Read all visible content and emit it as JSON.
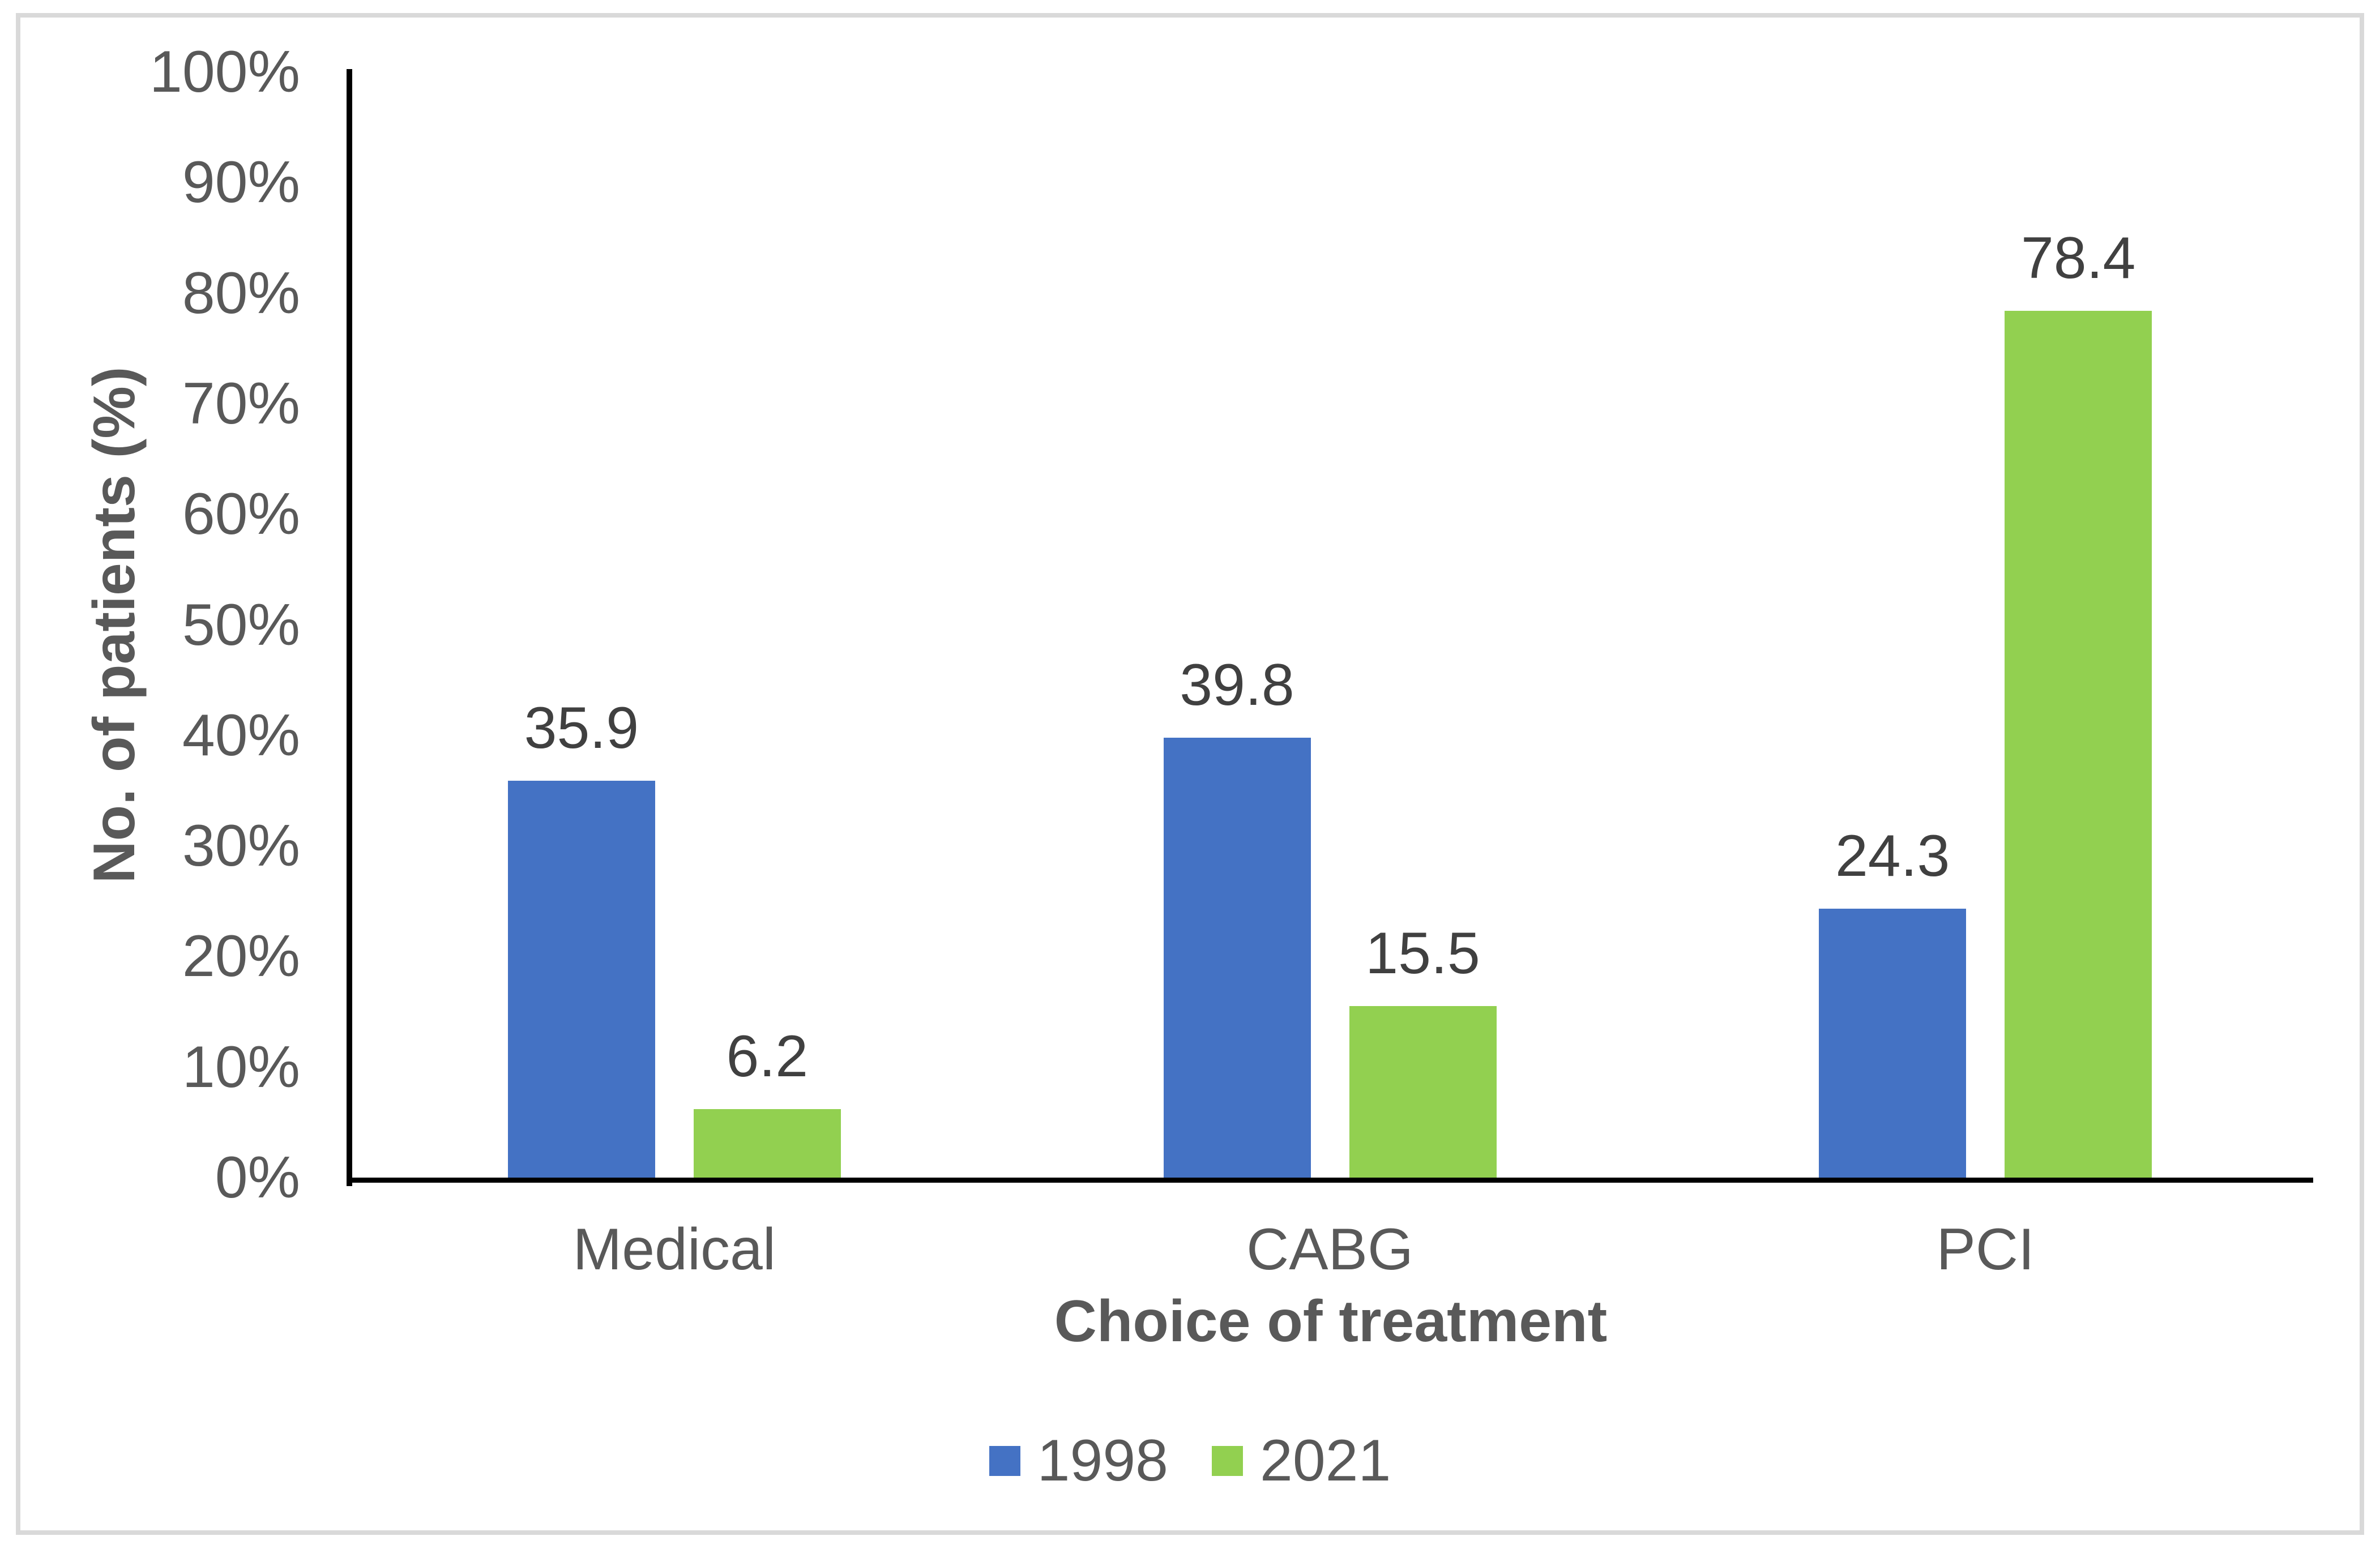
{
  "chart_data": {
    "type": "bar",
    "categories": [
      "Medical",
      "CABG",
      "PCI"
    ],
    "series": [
      {
        "name": "1998",
        "color": "#4472C4",
        "values": [
          35.9,
          39.8,
          24.3
        ],
        "labels": [
          "35.9",
          "39.8",
          "24.3"
        ]
      },
      {
        "name": "2021",
        "color": "#92D050",
        "values": [
          6.2,
          15.5,
          78.4
        ],
        "labels": [
          "6.2",
          "15.5",
          "78.4"
        ]
      }
    ],
    "xlabel": "Choice of treatment",
    "ylabel": "No. of patients (%)",
    "ylim": [
      0,
      100
    ],
    "ytick_step": 10,
    "ytick_labels": [
      "0%",
      "10%",
      "20%",
      "30%",
      "40%",
      "50%",
      "60%",
      "70%",
      "80%",
      "90%",
      "100%"
    ],
    "grid": false,
    "legend_position": "bottom",
    "axis_color": "#000000",
    "text_color": "#595959",
    "data_label_color": "#404040",
    "frame_border_color": "#D9D9D9"
  }
}
